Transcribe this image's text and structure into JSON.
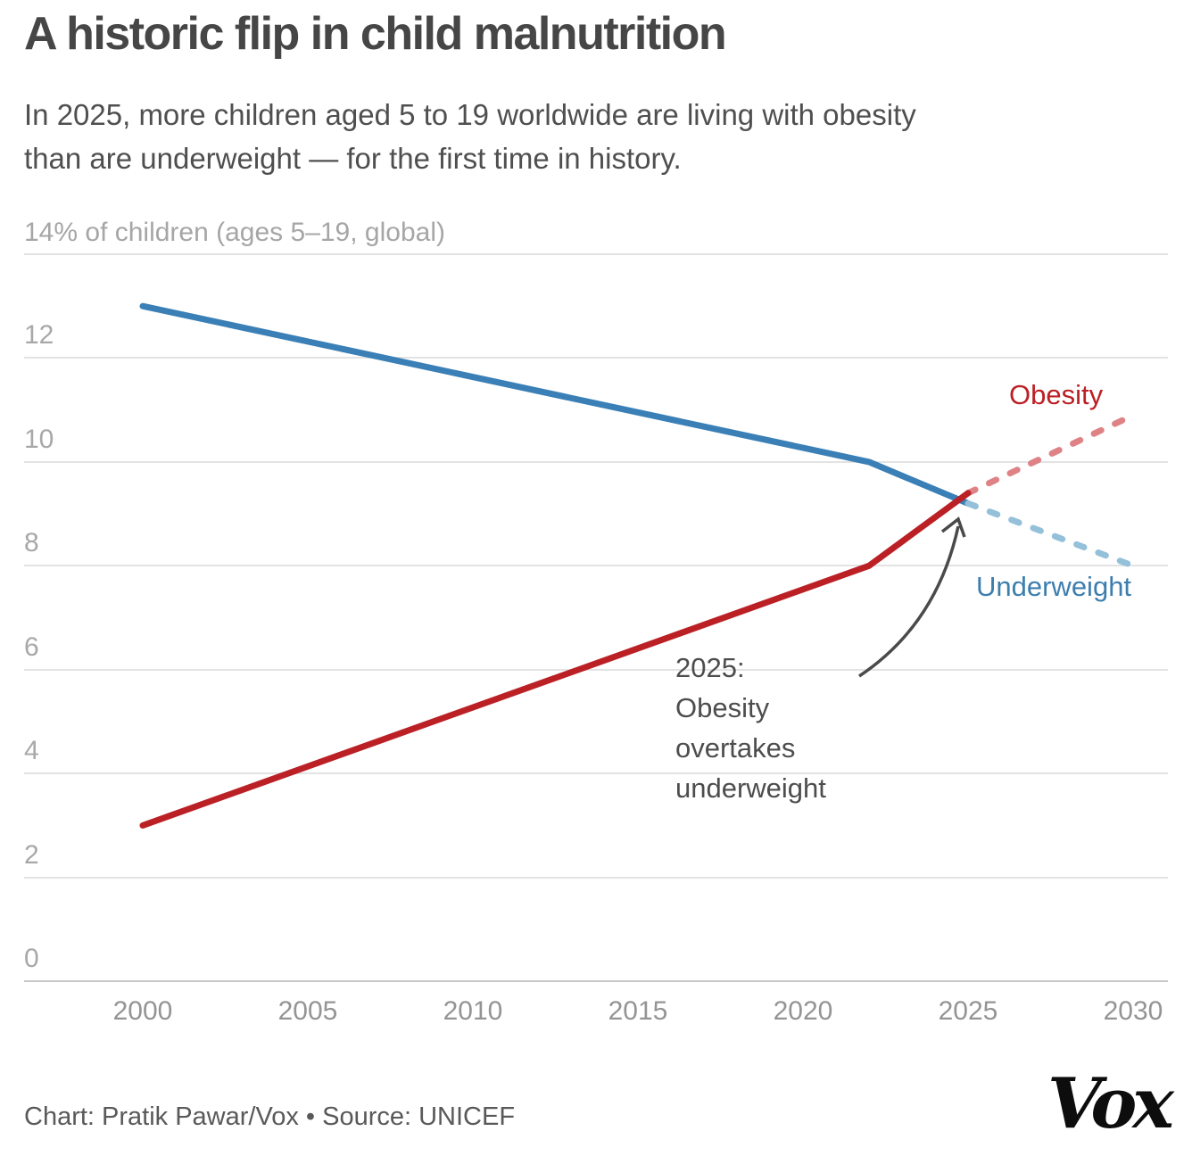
{
  "header": {
    "title": "A historic flip in child malnutrition",
    "subtitle_lines": [
      "In 2025, more children aged 5 to 19 worldwide are living with obesity",
      "than are underweight — for the first time in history."
    ]
  },
  "chart_data": {
    "type": "line",
    "title": "A historic flip in child malnutrition",
    "unit_label": "14% of children (ages 5–19, global)",
    "xlabel": "",
    "ylabel": "% of children (ages 5–19, global)",
    "ylim": [
      0,
      14
    ],
    "xlim": [
      2000,
      2030
    ],
    "grid": true,
    "x_ticks": [
      "2000",
      "2005",
      "2010",
      "2015",
      "2020",
      "2025",
      "2030"
    ],
    "y_ticks": [
      "12",
      "10",
      "8",
      "6",
      "4",
      "2",
      "0"
    ],
    "series": [
      {
        "name": "Underweight",
        "style": "solid",
        "color": "#3a7fb5",
        "x": [
          2000,
          2022,
          2025
        ],
        "values": [
          13.0,
          10.0,
          9.2
        ]
      },
      {
        "name": "Underweight (projected)",
        "style": "dashed",
        "color": "#94c0da",
        "x": [
          2025,
          2030
        ],
        "values": [
          9.2,
          8.0
        ]
      },
      {
        "name": "Obesity (projected)",
        "style": "dashed",
        "color": "#de8286",
        "x": [
          2025,
          2030
        ],
        "values": [
          9.4,
          10.9
        ]
      },
      {
        "name": "Obesity",
        "style": "solid",
        "color": "#bb2025",
        "x": [
          2000,
          2022,
          2025
        ],
        "values": [
          3.0,
          8.0,
          9.4
        ]
      }
    ],
    "series_labels": {
      "obesity": "Obesity",
      "underweight": "Underweight"
    },
    "annotation": {
      "lines": [
        "2025:",
        "Obesity",
        "overtakes",
        "underweight"
      ]
    },
    "legend_position": "direct-labels-right",
    "colors": {
      "underweight": "#3a7fb5",
      "underweight_projected": "#94c0da",
      "obesity": "#bb2025",
      "obesity_projected": "#de8286",
      "gridline": "#e3e3e3",
      "baseline": "#c8c8c8",
      "arrow": "#4a4a4a"
    }
  },
  "footer": {
    "credit": "Chart: Pratik Pawar/Vox • Source: UNICEF",
    "logo": "Vox"
  }
}
